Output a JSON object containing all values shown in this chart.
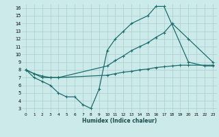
{
  "xlabel": "Humidex (Indice chaleur)",
  "bg_color": "#cceaea",
  "grid_color": "#aacccc",
  "line_color": "#1a6b6b",
  "xlim": [
    -0.5,
    23.5
  ],
  "ylim": [
    2.5,
    16.5
  ],
  "xticks": [
    0,
    1,
    2,
    3,
    4,
    5,
    6,
    7,
    8,
    9,
    10,
    11,
    12,
    13,
    14,
    15,
    16,
    17,
    18,
    19,
    20,
    21,
    22,
    23
  ],
  "yticks": [
    3,
    4,
    5,
    6,
    7,
    8,
    9,
    10,
    11,
    12,
    13,
    14,
    15,
    16
  ],
  "line1_x": [
    0,
    1,
    2,
    3,
    4,
    5,
    6,
    7,
    8,
    9,
    10,
    11,
    12,
    13,
    15,
    16,
    17,
    20,
    22,
    23
  ],
  "line1_y": [
    8,
    7,
    6.5,
    6,
    5,
    4.5,
    4.5,
    3.5,
    3,
    5.5,
    10.5,
    12,
    13,
    14,
    15,
    16.2,
    16.2,
    9,
    8.5,
    8.5
  ],
  "line2_x": [
    0,
    1,
    2,
    3,
    4,
    10,
    11,
    12,
    13,
    14,
    15,
    16,
    17,
    18,
    20,
    23
  ],
  "line2_y": [
    8,
    7.5,
    7,
    7,
    7,
    8.5,
    9.2,
    9.8,
    10.5,
    11,
    11.5,
    12.2,
    12.8,
    14,
    12,
    9
  ],
  "line3_x": [
    0,
    1,
    2,
    3,
    4,
    10,
    11,
    12,
    13,
    14,
    15,
    16,
    17,
    18,
    19,
    20,
    23
  ],
  "line3_y": [
    8,
    7.5,
    7.2,
    7,
    7,
    7.3,
    7.5,
    7.7,
    7.8,
    8,
    8.1,
    8.3,
    8.4,
    8.5,
    8.6,
    8.6,
    8.6
  ]
}
